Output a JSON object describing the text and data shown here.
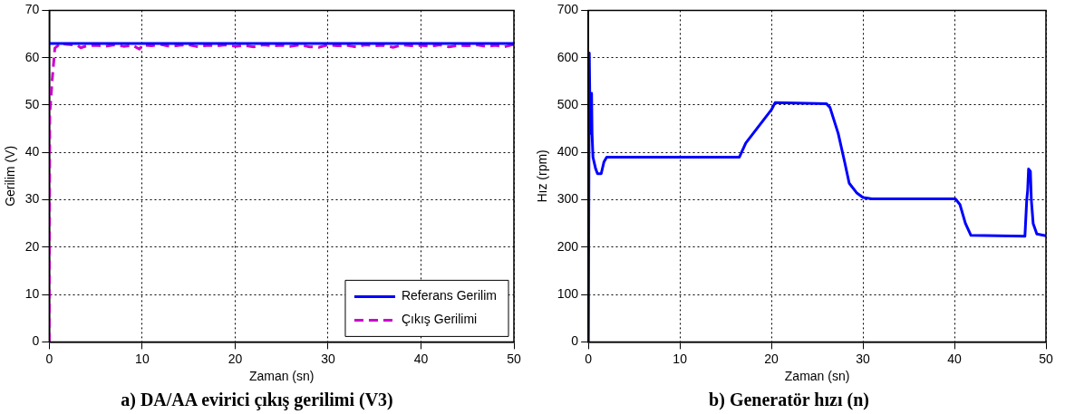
{
  "chart_data": [
    {
      "type": "line",
      "title": "a) DA/AA evirici çıkış gerilimi (V3)",
      "xlabel": "Zaman (sn)",
      "ylabel": "Gerilim (V)",
      "xlim": [
        0,
        50
      ],
      "ylim": [
        0,
        70
      ],
      "xticks": [
        0,
        10,
        20,
        30,
        40,
        50
      ],
      "yticks": [
        0,
        10,
        20,
        30,
        40,
        50,
        60,
        70
      ],
      "grid": true,
      "legend": "bottom right",
      "series": [
        {
          "name": "Referans Gerilim",
          "color": "#0000ff",
          "line_style": "solid",
          "x": [
            0,
            50
          ],
          "values": [
            63,
            63
          ]
        },
        {
          "name": "Çıkış Gerilimi",
          "color": "#cc00cc",
          "line_style": "dashed",
          "x": [
            0,
            0.05,
            0.3,
            0.6,
            1.2,
            2,
            3,
            3.4,
            4,
            5,
            6,
            7,
            8,
            9,
            9.7,
            10,
            11,
            12,
            13,
            14,
            15,
            16,
            17,
            18,
            19,
            20,
            21,
            22,
            23,
            24,
            25,
            26,
            27,
            28,
            29,
            30,
            31,
            32,
            33,
            34,
            35,
            36,
            37,
            38,
            39,
            40,
            41,
            42,
            43,
            44,
            45,
            46,
            47,
            48,
            49,
            50
          ],
          "values": [
            0,
            48,
            55,
            62,
            63,
            62.8,
            62.6,
            62.1,
            62.5,
            62.6,
            62.4,
            62.7,
            62.4,
            62.6,
            61.8,
            62.7,
            62.5,
            62.8,
            62.4,
            62.6,
            62.7,
            62.3,
            62.6,
            62.5,
            62.7,
            62.4,
            62.6,
            62.3,
            62.7,
            62.5,
            62.6,
            62.4,
            62.7,
            62.3,
            62.2,
            62.7,
            62.5,
            62.6,
            62.3,
            62.7,
            62.5,
            62.6,
            62.2,
            62.7,
            62.5,
            62.6,
            62.4,
            62.7,
            62.3,
            62.6,
            62.5,
            62.7,
            62.4,
            62.6,
            62.3,
            62.8
          ]
        }
      ]
    },
    {
      "type": "line",
      "title": "b) Generatör hızı (n)",
      "xlabel": "Zaman (sn)",
      "ylabel": "Hız (rpm)",
      "xlim": [
        0,
        50
      ],
      "ylim": [
        0,
        700
      ],
      "xticks": [
        0,
        10,
        20,
        30,
        40,
        50
      ],
      "yticks": [
        0,
        100,
        200,
        300,
        400,
        500,
        600,
        700
      ],
      "grid": true,
      "series": [
        {
          "color": "#0000ff",
          "line_style": "solid",
          "x": [
            0,
            0.1,
            0.2,
            0.3,
            0.35,
            0.4,
            0.5,
            0.8,
            1.0,
            1.4,
            1.7,
            2.0,
            16.5,
            17.2,
            18,
            19.2,
            20,
            20.4,
            26,
            26.4,
            27.3,
            28,
            28.5,
            29.3,
            30,
            31,
            40.1,
            40.6,
            41.2,
            41.8,
            47.7,
            47.9,
            48,
            48.1,
            48.3,
            48.4,
            48.6,
            49,
            50
          ],
          "values": [
            0,
            610,
            440,
            440,
            525,
            440,
            390,
            365,
            355,
            355,
            380,
            390,
            390,
            420,
            440,
            470,
            490,
            505,
            503,
            495,
            440,
            380,
            335,
            315,
            305,
            302,
            302,
            290,
            250,
            225,
            223,
            300,
            320,
            365,
            360,
            300,
            250,
            228,
            224
          ]
        }
      ]
    }
  ]
}
